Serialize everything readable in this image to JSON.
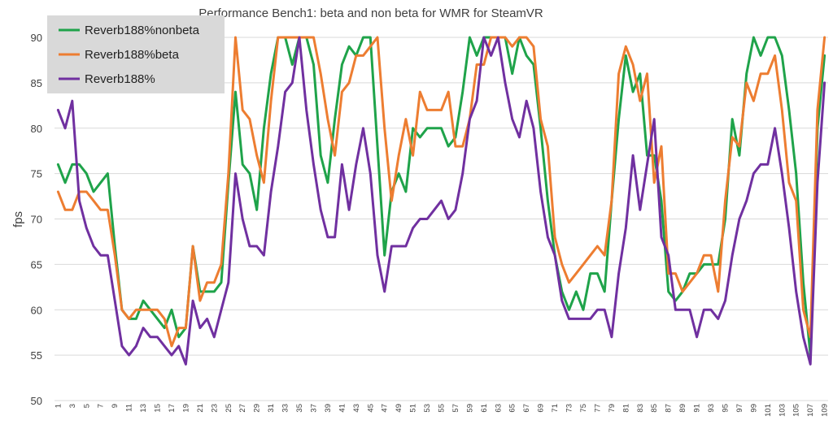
{
  "chart_data": {
    "type": "line",
    "title": "Performance Bench1: beta and non beta for WMR for SteamVR",
    "xlabel": "",
    "ylabel": "fps",
    "ylim": [
      50,
      90
    ],
    "yticks": [
      50,
      55,
      60,
      65,
      70,
      75,
      80,
      85,
      90
    ],
    "x_tick_labels": [
      "1",
      "3",
      "5",
      "7",
      "9",
      "11",
      "13",
      "15",
      "17",
      "19",
      "21",
      "23",
      "25",
      "27",
      "29",
      "31",
      "33",
      "35",
      "37",
      "39",
      "41",
      "43",
      "45",
      "47",
      "49",
      "51",
      "53",
      "55",
      "57",
      "59",
      "61",
      "63",
      "65",
      "67",
      "69",
      "71",
      "73",
      "75",
      "77",
      "79",
      "81",
      "83",
      "85",
      "87",
      "89",
      "91",
      "93",
      "95",
      "97",
      "99",
      "101",
      "103",
      "105",
      "107",
      "109"
    ],
    "grid": true,
    "legend": "top-left",
    "series": [
      {
        "name": "Reverb188%nonbeta",
        "color": "#1fa34a",
        "values": [
          76,
          74,
          76,
          76,
          75,
          73,
          74,
          75,
          67,
          60,
          59,
          59,
          61,
          60,
          59,
          58,
          60,
          57,
          58,
          67,
          62,
          62,
          62,
          63,
          74,
          84,
          76,
          75,
          71,
          80,
          86,
          90,
          90,
          87,
          90,
          90,
          87,
          77,
          74,
          81,
          87,
          89,
          88,
          90,
          90,
          78,
          66,
          73,
          75,
          73,
          80,
          79,
          80,
          80,
          80,
          78,
          79,
          84,
          90,
          88,
          90,
          90,
          90,
          90,
          86,
          90,
          88,
          87,
          80,
          72,
          66,
          62,
          60,
          62,
          60,
          64,
          64,
          62,
          72,
          81,
          88,
          84,
          86,
          77,
          77,
          72,
          62,
          61,
          62,
          64,
          64,
          65,
          65,
          65,
          70,
          81,
          77,
          86,
          90,
          88,
          90,
          90,
          88,
          82,
          75,
          63,
          55,
          80,
          88
        ]
      },
      {
        "name": "Reverb188%beta",
        "color": "#ed7d31",
        "values": [
          73,
          71,
          71,
          73,
          73,
          72,
          71,
          71,
          66,
          60,
          59,
          60,
          60,
          60,
          60,
          59,
          56,
          58,
          58,
          67,
          61,
          63,
          63,
          65,
          75,
          90,
          82,
          81,
          77,
          74,
          83,
          90,
          90,
          90,
          90,
          90,
          90,
          86,
          81,
          77,
          84,
          85,
          88,
          88,
          89,
          90,
          80,
          72,
          77,
          81,
          77,
          84,
          82,
          82,
          82,
          84,
          78,
          78,
          81,
          87,
          87,
          90,
          90,
          90,
          89,
          90,
          90,
          89,
          81,
          78,
          68,
          65,
          63,
          64,
          65,
          66,
          67,
          66,
          72,
          86,
          89,
          87,
          83,
          86,
          74,
          78,
          64,
          64,
          62,
          63,
          64,
          66,
          66,
          62,
          72,
          79,
          78,
          85,
          83,
          86,
          86,
          88,
          82,
          74,
          72,
          60,
          57,
          82,
          90
        ]
      },
      {
        "name": "Reverb188%",
        "color": "#7030a0",
        "values": [
          82,
          80,
          83,
          72,
          69,
          67,
          66,
          66,
          61,
          56,
          55,
          56,
          58,
          57,
          57,
          56,
          55,
          56,
          54,
          61,
          58,
          59,
          57,
          60,
          63,
          75,
          70,
          67,
          67,
          66,
          73,
          78,
          84,
          85,
          90,
          82,
          76,
          71,
          68,
          68,
          76,
          71,
          76,
          80,
          75,
          66,
          62,
          67,
          67,
          67,
          69,
          70,
          70,
          71,
          72,
          70,
          71,
          75,
          81,
          83,
          90,
          88,
          90,
          85,
          81,
          79,
          83,
          80,
          73,
          68,
          66,
          61,
          59,
          59,
          59,
          59,
          60,
          60,
          57,
          64,
          69,
          77,
          71,
          76,
          81,
          68,
          66,
          60,
          60,
          60,
          57,
          60,
          60,
          59,
          61,
          66,
          70,
          72,
          75,
          76,
          76,
          80,
          75,
          69,
          62,
          57,
          54,
          74,
          85
        ]
      }
    ]
  }
}
